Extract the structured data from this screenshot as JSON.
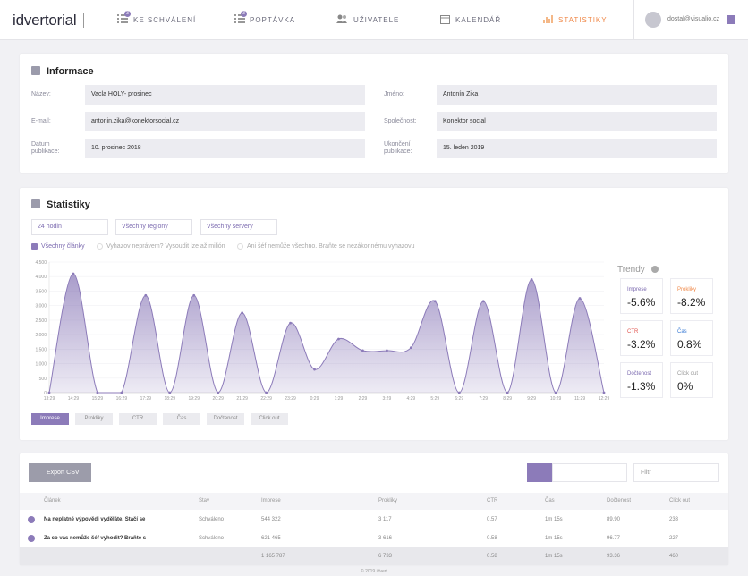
{
  "nav": {
    "logo": "idvertorial",
    "items": [
      {
        "label": "KE SCHVÁLENÍ",
        "badge": 3
      },
      {
        "label": "POPTÁVKA",
        "badge": 3
      },
      {
        "label": "UŽIVATELE"
      },
      {
        "label": "KALENDÁŘ"
      },
      {
        "label": "STATISTIKY"
      }
    ],
    "user": "dostal@visualio.cz"
  },
  "info": {
    "title": "Informace",
    "fields": [
      {
        "label": "Název:",
        "value": "Vacla HOLY- prosinec"
      },
      {
        "label": "Jméno:",
        "value": "Antonín Zika"
      },
      {
        "label": "E-mail:",
        "value": "antonin.zika@konektorsocial.cz"
      },
      {
        "label": "Společnost:",
        "value": "Konektor social"
      },
      {
        "label": "Datum publikace:",
        "value": "10. prosinec 2018"
      },
      {
        "label": "Ukončení publikace:",
        "value": "15. leden 2019"
      }
    ]
  },
  "stats": {
    "title": "Statistiky",
    "filters": [
      "24 hodin",
      "Všechny regiony",
      "Všechny servery"
    ],
    "checkboxes": [
      "Všechny články",
      "Vyhazov neprávem? Vysoudit lze až milión",
      "Ani šéf nemůže všechno. Braňte se nezákonnému vyhazovu"
    ],
    "trends_title": "Trendy",
    "trends": [
      {
        "label": "Imprese",
        "value": "-5.6%"
      },
      {
        "label": "Prokliky",
        "value": "-8.2%"
      },
      {
        "label": "CTR",
        "value": "-3.2%"
      },
      {
        "label": "Čas",
        "value": "0.8%"
      },
      {
        "label": "Dočtenost",
        "value": "-1.3%"
      },
      {
        "label": "Click out",
        "value": "0%"
      }
    ],
    "metric_buttons": [
      "Imprese",
      "Prokliky",
      "CTR",
      "Čas",
      "Dočtenost",
      "Click out"
    ]
  },
  "chart_data": {
    "type": "area",
    "color": "#8c7bb9",
    "grid": true,
    "categories": [
      "13:29",
      "14:29",
      "15:29",
      "16:29",
      "17:29",
      "18:29",
      "19:29",
      "20:29",
      "21:29",
      "22:29",
      "23:29",
      "0:29",
      "1:29",
      "2:29",
      "3:29",
      "4:29",
      "5:29",
      "6:29",
      "7:29",
      "8:29",
      "9:29",
      "10:29",
      "11:29",
      "12:29"
    ],
    "values": [
      0,
      4100,
      0,
      0,
      3350,
      0,
      3350,
      0,
      2750,
      0,
      2400,
      800,
      1850,
      1450,
      1450,
      1550,
      3150,
      0,
      3150,
      0,
      3900,
      0,
      3250,
      0
    ],
    "ylim": [
      0,
      4500
    ],
    "yticks": [
      0,
      500,
      {
        "value": 1000,
        "label": "1.000"
      },
      {
        "value": 1500,
        "label": "1.500"
      },
      {
        "value": 2000,
        "label": "2.000"
      },
      {
        "value": 2500,
        "label": "2.500"
      },
      {
        "value": 3000,
        "label": "3.000"
      },
      {
        "value": 3500,
        "label": "3.500"
      },
      {
        "value": 4000,
        "label": "4.000"
      },
      {
        "value": 4500,
        "label": "4.500"
      }
    ]
  },
  "table": {
    "export": "Export CSV",
    "filter_placeholder": "Filtr",
    "header": [
      "Článek",
      "Stav",
      "Imprese",
      "Prokliky",
      "CTR",
      "Čas",
      "Dočtenost",
      "Click out"
    ],
    "rows": [
      [
        "Na neplatné výpovědi vyděláte. Stačí se",
        "Schváleno",
        "544 322",
        "3 117",
        "0.57",
        "1m 15s",
        "89.90",
        "233"
      ],
      [
        "Za co vás nemůže šéf vyhodit? Braňte s",
        "Schváleno",
        "621 465",
        "3 616",
        "0.58",
        "1m 15s",
        "96.77",
        "227"
      ]
    ],
    "totals": [
      "1 165 787",
      "6 733",
      "0.58",
      "1m 15s",
      "93.36",
      "460"
    ]
  },
  "footer": "© 2019 idvert"
}
